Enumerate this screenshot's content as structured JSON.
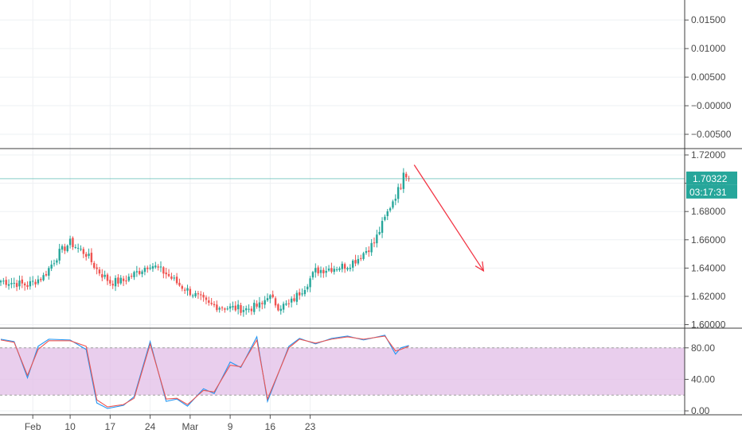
{
  "chart_data": [
    {
      "type": "line",
      "panel": "top-oscillator",
      "title": "",
      "ylim": [
        -0.0075,
        0.0185
      ],
      "yticks": [
        "0.01500",
        "0.01000",
        "0.00500",
        "−0.00000",
        "−0.00500"
      ],
      "ytick_values": [
        0.015,
        0.01,
        0.005,
        0.0,
        -0.005
      ],
      "series": [],
      "grid": true
    },
    {
      "type": "candlestick",
      "panel": "price",
      "title": "",
      "ylim": [
        1.5975,
        1.7245
      ],
      "yticks": [
        "1.72000",
        "1.70000",
        "1.68000",
        "1.66000",
        "1.64000",
        "1.62000",
        "1.60000"
      ],
      "ytick_values": [
        1.72,
        1.7,
        1.68,
        1.66,
        1.64,
        1.62,
        1.6
      ],
      "current_price": 1.70322,
      "current_price_label": "1.70322",
      "countdown_label": "03:17:31",
      "key_closes": [
        [
          0,
          1.631
        ],
        [
          10,
          1.628
        ],
        [
          16,
          1.634
        ],
        [
          22,
          1.651
        ],
        [
          26,
          1.658
        ],
        [
          32,
          1.65
        ],
        [
          36,
          1.639
        ],
        [
          41,
          1.63
        ],
        [
          46,
          1.631
        ],
        [
          52,
          1.638
        ],
        [
          56,
          1.643
        ],
        [
          62,
          1.636
        ],
        [
          67,
          1.628
        ],
        [
          72,
          1.622
        ],
        [
          78,
          1.614
        ],
        [
          85,
          1.612
        ],
        [
          92,
          1.611
        ],
        [
          98,
          1.614
        ],
        [
          100,
          1.621
        ],
        [
          104,
          1.613
        ],
        [
          108,
          1.614
        ],
        [
          114,
          1.627
        ],
        [
          118,
          1.638
        ],
        [
          124,
          1.64
        ],
        [
          130,
          1.642
        ],
        [
          134,
          1.647
        ],
        [
          140,
          1.658
        ],
        [
          144,
          1.675
        ],
        [
          147,
          1.688
        ],
        [
          149,
          1.695
        ],
        [
          150,
          1.699
        ],
        [
          151,
          1.71
        ],
        [
          152,
          1.706
        ],
        [
          153,
          1.703
        ]
      ],
      "arrow": {
        "color": "#f23645",
        "from": [
          155,
          1.713
        ],
        "to": [
          181,
          1.638
        ]
      },
      "colors": {
        "up": "#26a69a",
        "down": "#ef5350",
        "price_line": "#26a69a"
      },
      "grid": true
    },
    {
      "type": "line",
      "panel": "stochastic",
      "title": "",
      "ylim": [
        -5,
        105
      ],
      "yticks": [
        "80.00",
        "40.00",
        "0.00"
      ],
      "ytick_values": [
        80,
        40,
        0
      ],
      "band": [
        20,
        80
      ],
      "band_color": "#e1bee7",
      "series": [
        {
          "color": "#2196f3",
          "points": [
            [
              0,
              91
            ],
            [
              5,
              88
            ],
            [
              10,
              42
            ],
            [
              14,
              82
            ],
            [
              18,
              91
            ],
            [
              26,
              90
            ],
            [
              32,
              78
            ],
            [
              36,
              10
            ],
            [
              40,
              3
            ],
            [
              46,
              7
            ],
            [
              50,
              18
            ],
            [
              56,
              88
            ],
            [
              62,
              12
            ],
            [
              66,
              15
            ],
            [
              70,
              6
            ],
            [
              76,
              28
            ],
            [
              80,
              22
            ],
            [
              86,
              62
            ],
            [
              90,
              55
            ],
            [
              96,
              94
            ],
            [
              100,
              12
            ],
            [
              108,
              82
            ],
            [
              112,
              92
            ],
            [
              118,
              85
            ],
            [
              124,
              92
            ],
            [
              130,
              95
            ],
            [
              136,
              90
            ],
            [
              144,
              96
            ],
            [
              148,
              72
            ],
            [
              150,
              80
            ],
            [
              153,
              83
            ]
          ]
        },
        {
          "color": "#ef5350",
          "points": [
            [
              0,
              90
            ],
            [
              5,
              87
            ],
            [
              10,
              45
            ],
            [
              14,
              78
            ],
            [
              18,
              89
            ],
            [
              26,
              89
            ],
            [
              32,
              82
            ],
            [
              36,
              14
            ],
            [
              40,
              5
            ],
            [
              46,
              8
            ],
            [
              50,
              16
            ],
            [
              56,
              85
            ],
            [
              62,
              15
            ],
            [
              66,
              16
            ],
            [
              70,
              8
            ],
            [
              76,
              26
            ],
            [
              80,
              24
            ],
            [
              86,
              58
            ],
            [
              90,
              56
            ],
            [
              96,
              90
            ],
            [
              100,
              15
            ],
            [
              108,
              80
            ],
            [
              112,
              91
            ],
            [
              118,
              86
            ],
            [
              124,
              91
            ],
            [
              130,
              94
            ],
            [
              136,
              91
            ],
            [
              144,
              95
            ],
            [
              148,
              76
            ],
            [
              150,
              78
            ],
            [
              153,
              82
            ]
          ]
        }
      ],
      "grid": true
    }
  ],
  "xaxis": {
    "labels": [
      "Feb",
      "10",
      "17",
      "24",
      "Mar",
      "9",
      "16",
      "23"
    ],
    "label_bars": [
      12,
      26,
      41,
      56,
      71,
      86,
      101,
      116
    ]
  }
}
